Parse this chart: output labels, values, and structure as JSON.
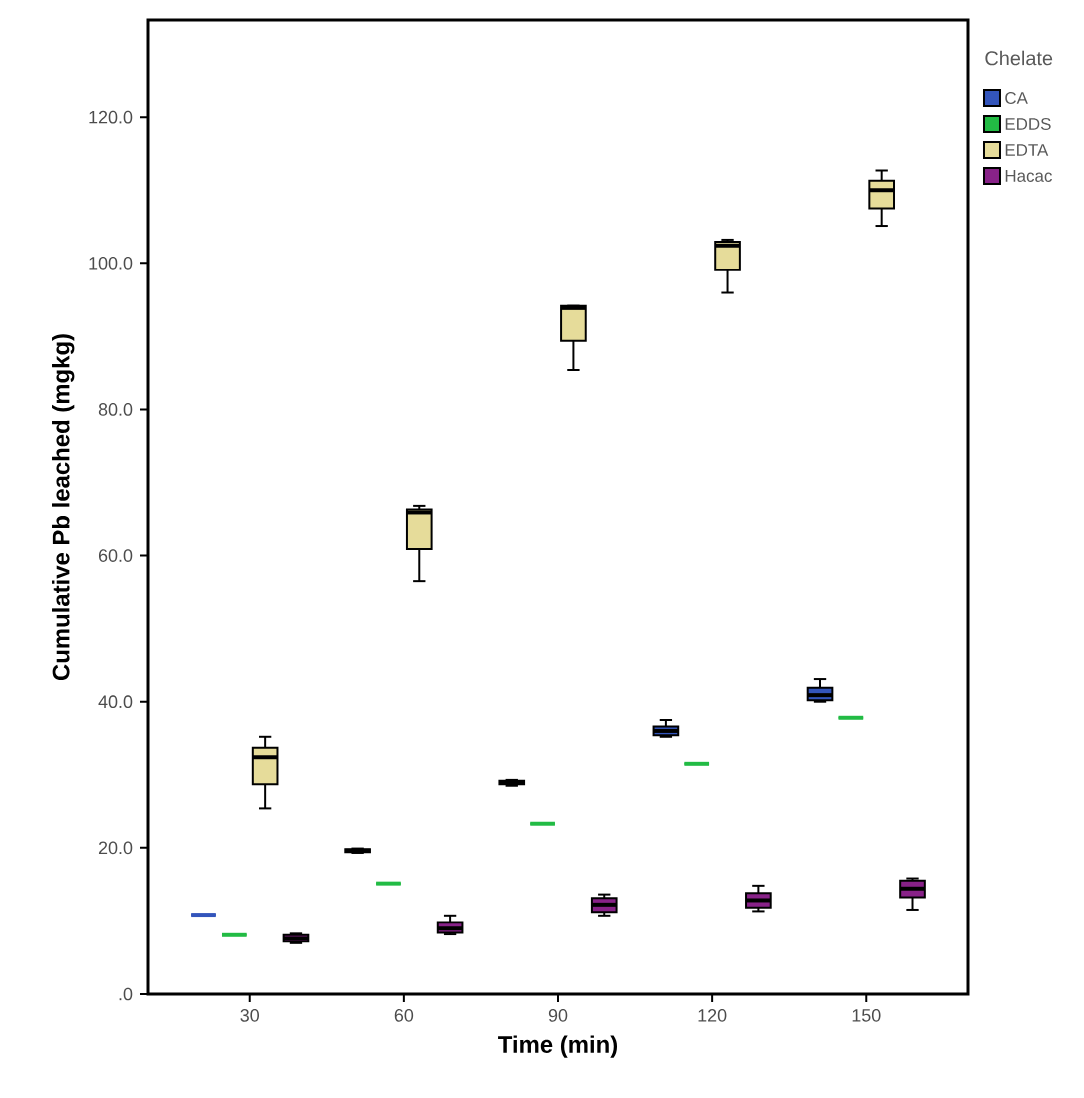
{
  "chart_data": {
    "type": "box",
    "xlabel": "Time (min)",
    "ylabel": "Cumulative Pb leached (mgkg)",
    "legend_title": "Chelate",
    "legend": "top right",
    "categories": [
      "30",
      "60",
      "90",
      "120",
      "150"
    ],
    "ylim": [
      0,
      133.3
    ],
    "yticks": [
      {
        "value": 0,
        "label": ".0"
      },
      {
        "value": 20,
        "label": "20.0"
      },
      {
        "value": 40,
        "label": "40.0"
      },
      {
        "value": 60,
        "label": "60.0"
      },
      {
        "value": 80,
        "label": "80.0"
      },
      {
        "value": 100,
        "label": "100.0"
      },
      {
        "value": 120,
        "label": "120.0"
      }
    ],
    "series": [
      {
        "name": "CA",
        "color": "#3355bb",
        "boxes": [
          {
            "low": 10.8,
            "q1": 10.8,
            "median": 10.8,
            "q3": 10.8,
            "high": 10.8
          },
          {
            "low": 19.3,
            "q1": 19.4,
            "median": 19.6,
            "q3": 19.8,
            "high": 19.9
          },
          {
            "low": 28.5,
            "q1": 28.7,
            "median": 29.0,
            "q3": 29.2,
            "high": 29.3
          },
          {
            "low": 35.2,
            "q1": 35.4,
            "median": 36.0,
            "q3": 36.6,
            "high": 37.5
          },
          {
            "low": 40.0,
            "q1": 40.2,
            "median": 40.9,
            "q3": 41.9,
            "high": 43.1
          }
        ]
      },
      {
        "name": "EDDS",
        "color": "#22bb44",
        "boxes": [
          {
            "low": 8.1,
            "q1": 8.1,
            "median": 8.1,
            "q3": 8.1,
            "high": 8.1
          },
          {
            "low": 15.1,
            "q1": 15.1,
            "median": 15.1,
            "q3": 15.1,
            "high": 15.1
          },
          {
            "low": 23.3,
            "q1": 23.3,
            "median": 23.3,
            "q3": 23.3,
            "high": 23.3
          },
          {
            "low": 31.5,
            "q1": 31.5,
            "median": 31.5,
            "q3": 31.5,
            "high": 31.5
          },
          {
            "low": 37.8,
            "q1": 37.8,
            "median": 37.8,
            "q3": 37.8,
            "high": 37.8
          }
        ]
      },
      {
        "name": "EDTA",
        "color": "#e6dc9a",
        "boxes": [
          {
            "low": 25.4,
            "q1": 28.7,
            "median": 32.4,
            "q3": 33.7,
            "high": 35.2
          },
          {
            "low": 56.5,
            "q1": 60.9,
            "median": 65.9,
            "q3": 66.3,
            "high": 66.8
          },
          {
            "low": 85.4,
            "q1": 89.4,
            "median": 93.9,
            "q3": 94.2,
            "high": 94.2
          },
          {
            "low": 96.0,
            "q1": 99.1,
            "median": 102.4,
            "q3": 102.9,
            "high": 103.2
          },
          {
            "low": 105.1,
            "q1": 107.5,
            "median": 110.0,
            "q3": 111.3,
            "high": 112.7
          }
        ]
      },
      {
        "name": "Hacac",
        "color": "#882288",
        "boxes": [
          {
            "low": 7.0,
            "q1": 7.2,
            "median": 7.6,
            "q3": 8.1,
            "high": 8.3
          },
          {
            "low": 8.2,
            "q1": 8.4,
            "median": 9.0,
            "q3": 9.8,
            "high": 10.7
          },
          {
            "low": 10.7,
            "q1": 11.2,
            "median": 12.2,
            "q3": 13.1,
            "high": 13.6
          },
          {
            "low": 11.3,
            "q1": 11.8,
            "median": 12.8,
            "q3": 13.8,
            "high": 14.8
          },
          {
            "low": 11.5,
            "q1": 13.2,
            "median": 14.4,
            "q3": 15.5,
            "high": 15.8
          }
        ]
      }
    ]
  }
}
